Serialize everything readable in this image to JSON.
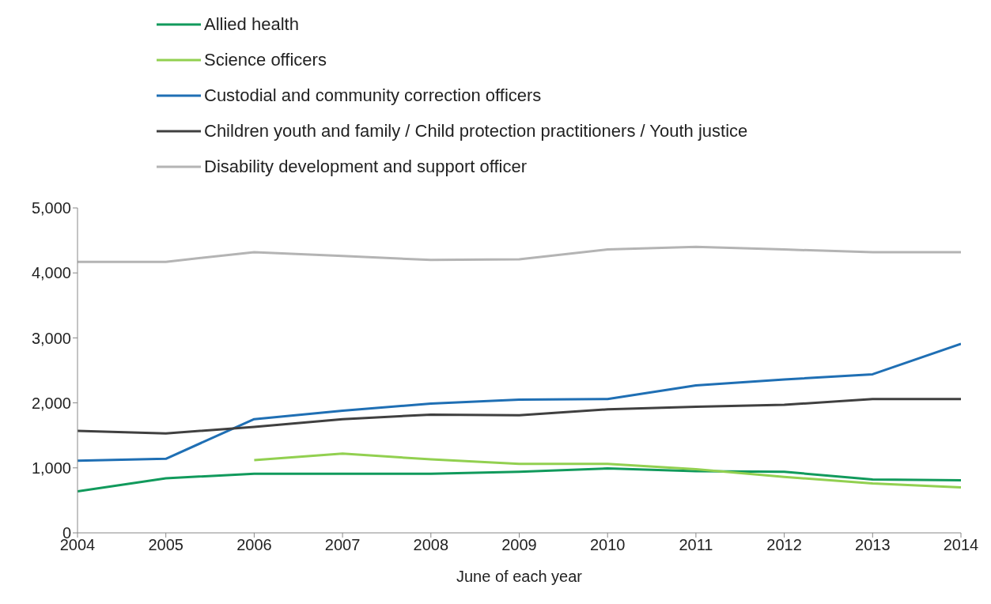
{
  "chart_data": {
    "type": "line",
    "xlabel": "June of each year",
    "x": [
      2004,
      2005,
      2006,
      2007,
      2008,
      2009,
      2010,
      2011,
      2012,
      2013,
      2014
    ],
    "xlim": [
      2004,
      2014
    ],
    "xticks": [
      2004,
      2005,
      2006,
      2007,
      2008,
      2009,
      2010,
      2011,
      2012,
      2013,
      2014
    ],
    "ylim": [
      0,
      5000
    ],
    "yticks": [
      {
        "value": 0,
        "label": "0"
      },
      {
        "value": 1000,
        "label": "1,000"
      },
      {
        "value": 2000,
        "label": "2,000"
      },
      {
        "value": 3000,
        "label": "3,000"
      },
      {
        "value": 4000,
        "label": "4,000"
      },
      {
        "value": 5000,
        "label": "5,000"
      }
    ],
    "grid": false,
    "legend": "top",
    "series": [
      {
        "name": "Allied health",
        "color": "#119a5c",
        "values": [
          640,
          840,
          910,
          910,
          910,
          940,
          990,
          950,
          940,
          820,
          810
        ]
      },
      {
        "name": "Science officers",
        "color": "#92d050",
        "values": [
          null,
          null,
          1120,
          1220,
          1130,
          1060,
          1060,
          980,
          860,
          760,
          700
        ]
      },
      {
        "name": "Custodial and community correction officers",
        "color": "#1f6fb4",
        "values": [
          1110,
          1140,
          1750,
          1880,
          1990,
          2050,
          2060,
          2270,
          2360,
          2440,
          2910
        ]
      },
      {
        "name": "Children youth and family / Child protection practitioners / Youth justice",
        "color": "#404040",
        "values": [
          1570,
          1530,
          1630,
          1750,
          1820,
          1810,
          1900,
          1940,
          1970,
          2060,
          2060
        ]
      },
      {
        "name": "Disability development and support officer",
        "color": "#b4b4b4",
        "values": [
          4170,
          4170,
          4320,
          4260,
          4200,
          4210,
          4360,
          4400,
          4360,
          4320,
          4320
        ]
      }
    ]
  }
}
